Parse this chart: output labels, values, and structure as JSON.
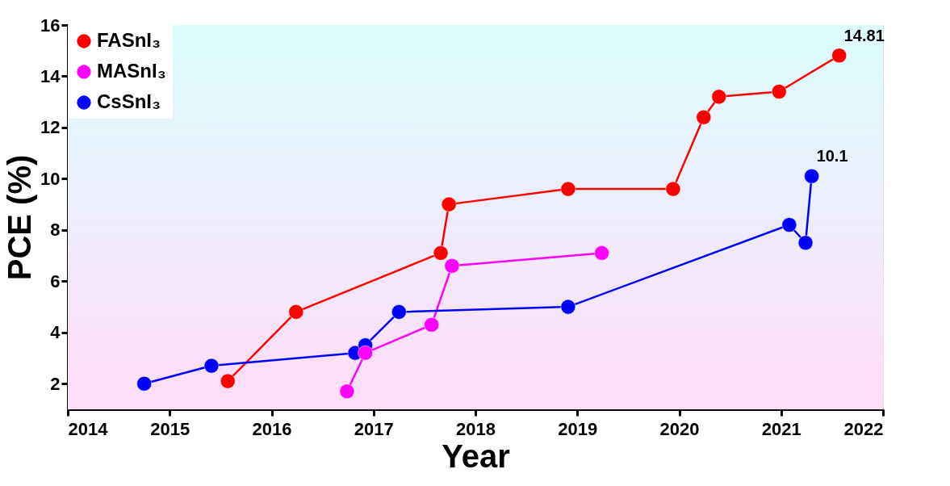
{
  "chart_data": {
    "type": "line",
    "xlabel": "Year",
    "ylabel": "PCE (%)",
    "xlim": [
      2014,
      2022
    ],
    "xticks": [
      2014,
      2015,
      2016,
      2017,
      2018,
      2019,
      2020,
      2021,
      2022
    ],
    "ylim": [
      1,
      16
    ],
    "yticks": [
      2,
      4,
      6,
      8,
      10,
      12,
      14,
      16
    ],
    "grid": false,
    "legend": "top left",
    "marker": "circle",
    "line_style": "solid",
    "series": [
      {
        "name": "FASnI₃",
        "color": "#ff0000",
        "x": [
          2015.57,
          2016.24,
          2017.66,
          2017.74,
          2018.91,
          2019.94,
          2020.24,
          2020.39,
          2020.98,
          2021.57
        ],
        "values": [
          2.1,
          4.8,
          7.1,
          9.0,
          9.6,
          9.6,
          12.4,
          13.2,
          13.4,
          14.81
        ]
      },
      {
        "name": "MASnI₃",
        "color": "#ff00ff",
        "x": [
          2016.74,
          2016.92,
          2017.57,
          2017.77,
          2019.24
        ],
        "values": [
          1.7,
          3.2,
          4.3,
          6.6,
          7.1
        ]
      },
      {
        "name": "CsSnI₃",
        "color": "#0000ff",
        "x": [
          2014.75,
          2015.41,
          2016.82,
          2016.92,
          2017.25,
          2018.91,
          2021.08,
          2021.24,
          2021.3
        ],
        "values": [
          2.0,
          2.7,
          3.2,
          3.5,
          4.8,
          5.0,
          8.2,
          7.5,
          10.1
        ]
      }
    ],
    "annotations": [
      {
        "text": "14.81",
        "x": 2021.57,
        "y": 14.81
      },
      {
        "text": "10.1",
        "x": 2021.3,
        "y": 10.1
      }
    ]
  }
}
